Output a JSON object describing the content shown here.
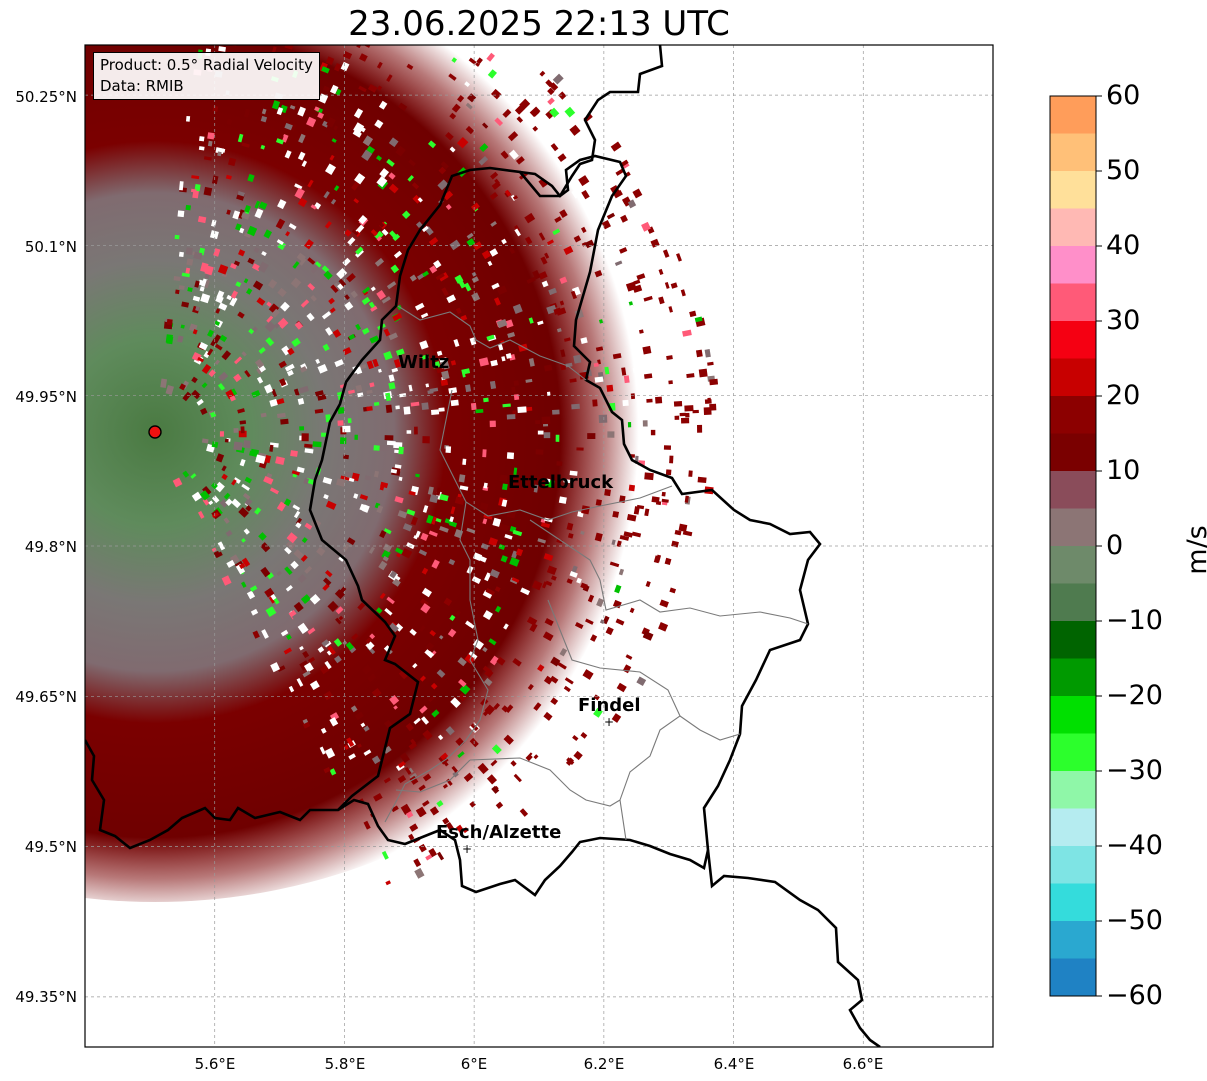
{
  "title": "23.06.2025 22:13 UTC",
  "info": {
    "product": "Product: 0.5° Radial Velocity",
    "source": "Data: RMIB"
  },
  "map": {
    "lon_range": [
      5.4,
      6.8
    ],
    "lat_range": [
      49.3,
      50.3
    ],
    "lon_ticks": [
      "5.6°E",
      "5.8°E",
      "6°E",
      "6.2°E",
      "6.4°E",
      "6.6°E"
    ],
    "lat_ticks": [
      "50.25°N",
      "50.1°N",
      "49.95°N",
      "49.8°N",
      "49.65°N",
      "49.5°N",
      "49.35°N"
    ],
    "radar_site": {
      "lon": 5.505,
      "lat": 49.915
    },
    "cities": [
      {
        "name": "Wiltz",
        "lon": 5.935,
        "lat": 49.966
      },
      {
        "name": "Ettelbruck",
        "lon": 6.104,
        "lat": 49.847
      },
      {
        "name": "Findel",
        "lon": 6.208,
        "lat": 49.627
      },
      {
        "name": "Esch/Alzette",
        "lon": 5.985,
        "lat": 49.5
      }
    ]
  },
  "colorbar": {
    "label": "m/s",
    "ticks": [
      "60",
      "50",
      "40",
      "30",
      "20",
      "10",
      "0",
      "−10",
      "−20",
      "−30",
      "−40",
      "−50",
      "−60"
    ],
    "range": [
      -60,
      60
    ],
    "colors": [
      "#ff9d5a",
      "#ffc078",
      "#ffe09a",
      "#ffb9b4",
      "#ff8fc9",
      "#ff5a78",
      "#f50012",
      "#c80000",
      "#8c0000",
      "#7a0000",
      "#8a4c5a",
      "#8c7575",
      "#6e8a6a",
      "#4f7b4f",
      "#006400",
      "#009a00",
      "#00e000",
      "#2cff2c",
      "#8ff7a8",
      "#b5ecf0",
      "#7ee4e4",
      "#34dcdc",
      "#2aa8d0",
      "#1f82c4"
    ]
  }
}
